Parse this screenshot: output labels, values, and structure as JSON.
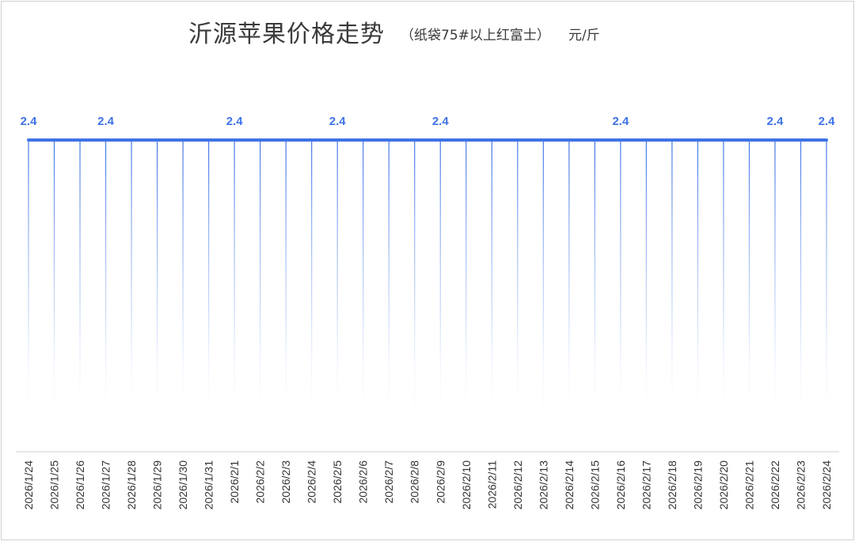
{
  "title": {
    "main": "沂源苹果价格走势",
    "sub": "（纸袋75#以上红富士）",
    "unit": "元/斤"
  },
  "colors": {
    "line": "#3f73e6",
    "label": "#3f73e6",
    "axis_text": "#333333",
    "baseline": "#cfcfcf"
  },
  "chart_data": {
    "type": "line",
    "title": "沂源苹果价格走势",
    "subtitle": "（纸袋75#以上红富士）",
    "unit": "元/斤",
    "x": [
      "2026/1/24",
      "2026/1/25",
      "2026/1/26",
      "2026/1/27",
      "2026/1/28",
      "2026/1/29",
      "2026/1/30",
      "2026/1/31",
      "2026/2/1",
      "2026/2/2",
      "2026/2/3",
      "2026/2/4",
      "2026/2/5",
      "2026/2/6",
      "2026/2/7",
      "2026/2/8",
      "2026/2/9",
      "2026/2/10",
      "2026/2/11",
      "2026/2/12",
      "2026/2/13",
      "2026/2/14",
      "2026/2/15",
      "2026/2/16",
      "2026/2/17",
      "2026/2/18",
      "2026/2/19",
      "2026/2/20",
      "2026/2/21",
      "2026/2/22",
      "2026/2/23",
      "2026/2/24"
    ],
    "series": [
      {
        "values": [
          2.4,
          2.4,
          2.4,
          2.4,
          2.4,
          2.4,
          2.4,
          2.4,
          2.4,
          2.4,
          2.4,
          2.4,
          2.4,
          2.4,
          2.4,
          2.4,
          2.4,
          2.4,
          2.4,
          2.4,
          2.4,
          2.4,
          2.4,
          2.4,
          2.4,
          2.4,
          2.4,
          2.4,
          2.4,
          2.4,
          2.4,
          2.4
        ]
      }
    ],
    "data_labels": [
      {
        "x": "2026/1/24",
        "text": "2.4"
      },
      {
        "x": "2026/1/27",
        "text": "2.4"
      },
      {
        "x": "2026/2/1",
        "text": "2.4"
      },
      {
        "x": "2026/2/5",
        "text": "2.4"
      },
      {
        "x": "2026/2/9",
        "text": "2.4"
      },
      {
        "x": "2026/2/16",
        "text": "2.4"
      },
      {
        "x": "2026/2/22",
        "text": "2.4"
      },
      {
        "x": "2026/2/24",
        "text": "2.4"
      }
    ],
    "ylim": [
      0,
      2.4
    ],
    "grid": false,
    "drop_lines": true
  }
}
